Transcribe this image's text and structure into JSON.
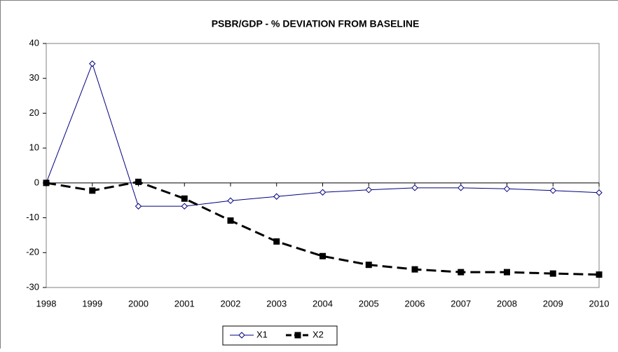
{
  "chart_data": {
    "type": "line",
    "title": "PSBR/GDP  - % DEVIATION FROM BASELINE",
    "x": [
      1998,
      1999,
      2000,
      2001,
      2002,
      2003,
      2004,
      2005,
      2006,
      2007,
      2008,
      2009,
      2010
    ],
    "xlim": [
      1998,
      2010
    ],
    "xticks": [
      1998,
      1999,
      2000,
      2001,
      2002,
      2003,
      2004,
      2005,
      2006,
      2007,
      2008,
      2009,
      2010
    ],
    "ylim": [
      -30,
      40
    ],
    "yticks": [
      -30,
      -20,
      -10,
      0,
      10,
      20,
      30,
      40
    ],
    "grid": false,
    "legend": "bottom",
    "series": [
      {
        "name": "X1",
        "color": "#000080",
        "values": [
          0,
          34.2,
          -6.7,
          -6.7,
          -5.1,
          -3.9,
          -2.7,
          -2.0,
          -1.4,
          -1.4,
          -1.7,
          -2.2,
          -2.8
        ]
      },
      {
        "name": "X2",
        "color": "#000000",
        "values": [
          0,
          -2.2,
          0.3,
          -4.5,
          -10.8,
          -16.8,
          -21.0,
          -23.5,
          -24.8,
          -25.6,
          -25.6,
          -26.0,
          -26.3
        ]
      }
    ]
  }
}
